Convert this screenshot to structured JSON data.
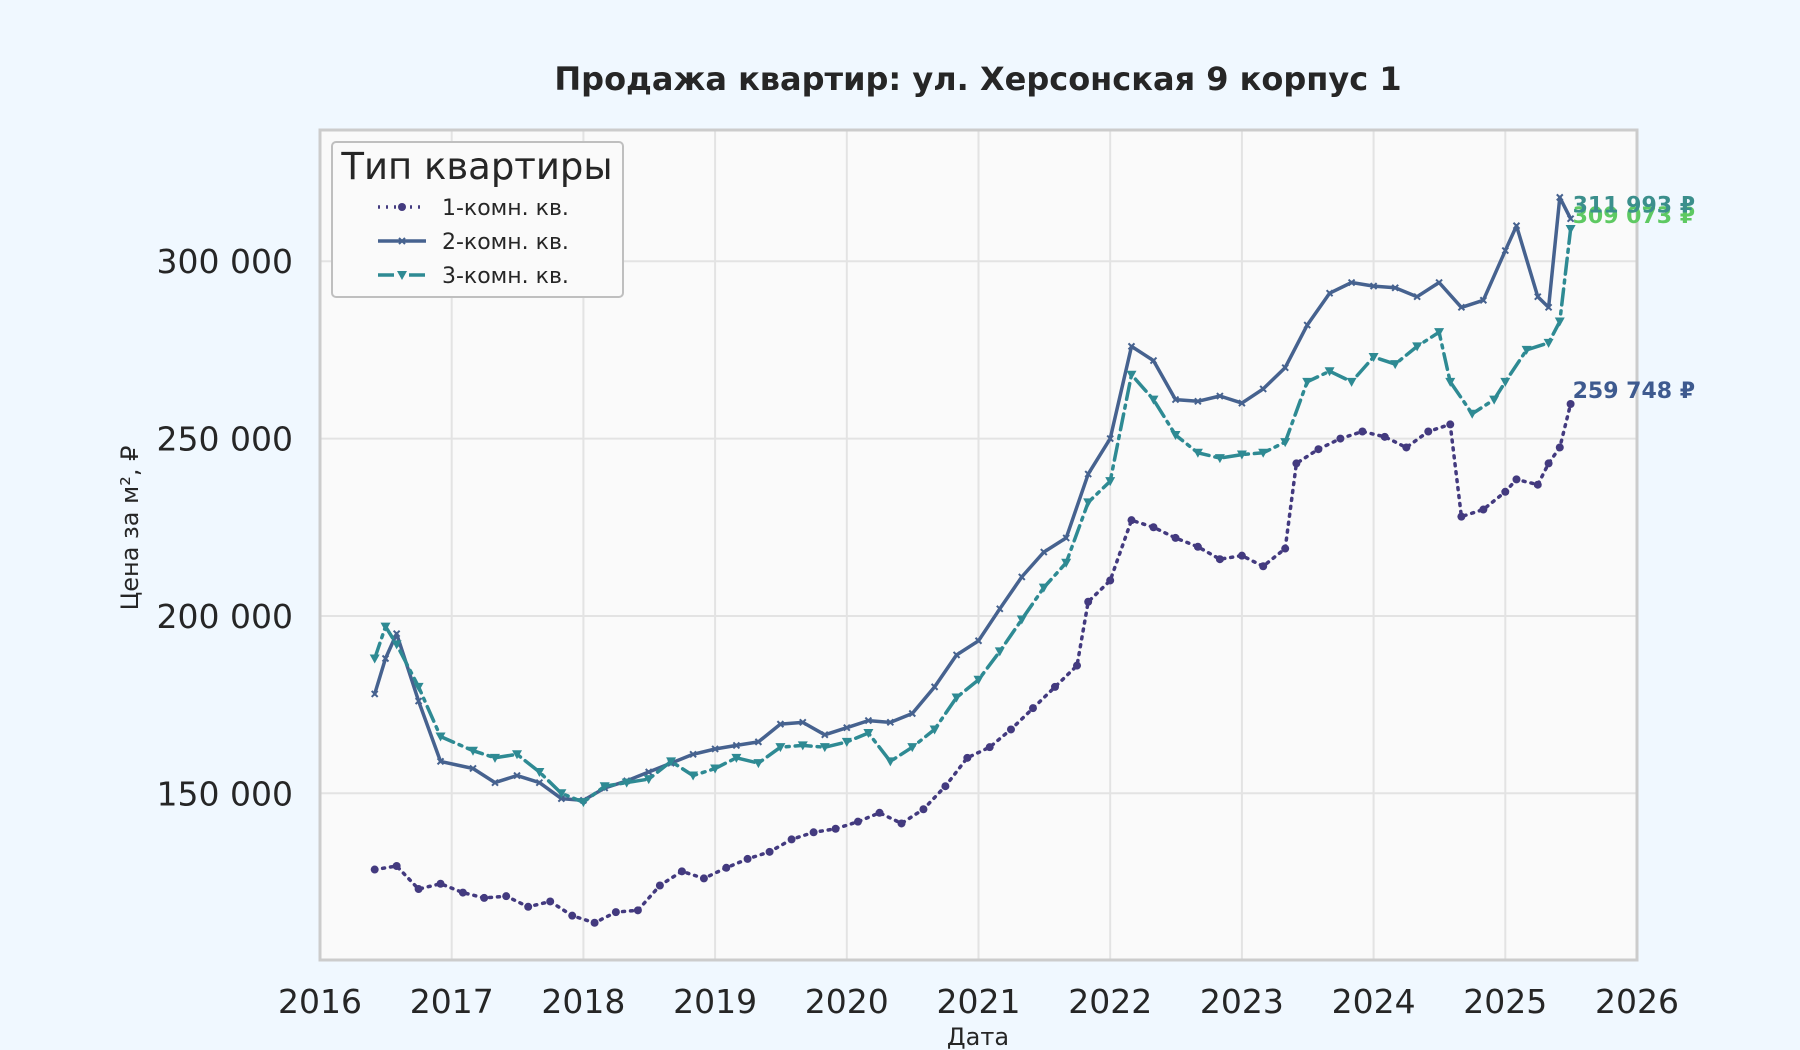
{
  "chart_data": {
    "type": "line",
    "title": "Продажа квартир: ул. Херсонская 9 корпус 1",
    "xlabel": "Дата",
    "ylabel": "Цена за м², ₽",
    "xlim": [
      "2016-01-01",
      "2026-01-01"
    ],
    "ylim": [
      103000,
      337000
    ],
    "x_ticks": [
      "2016",
      "2017",
      "2018",
      "2019",
      "2020",
      "2021",
      "2022",
      "2023",
      "2024",
      "2025",
      "2026"
    ],
    "y_ticks": [
      150000,
      200000,
      250000,
      300000
    ],
    "y_tick_labels": [
      "150 000",
      "200 000",
      "250 000",
      "300 000"
    ],
    "grid": true,
    "legend": {
      "title": "Тип квартиры",
      "position": "top-left"
    },
    "colors": {
      "background": "#f0f8ff",
      "plot_background": "#fafafa",
      "grid": "#e3e3e3",
      "frame": "#cccccc"
    },
    "series": [
      {
        "name": "1-комн. кв.",
        "color": "#433a7f",
        "style": "dotted",
        "marker": "circle",
        "points": [
          [
            "2016-06-01",
            128500
          ],
          [
            "2016-08-01",
            129500
          ],
          [
            "2016-10-01",
            123000
          ],
          [
            "2016-12-01",
            124500
          ],
          [
            "2017-02-01",
            122000
          ],
          [
            "2017-04-01",
            120500
          ],
          [
            "2017-06-01",
            121000
          ],
          [
            "2017-08-01",
            118000
          ],
          [
            "2017-10-01",
            119500
          ],
          [
            "2017-12-01",
            115500
          ],
          [
            "2018-02-01",
            113500
          ],
          [
            "2018-04-01",
            116500
          ],
          [
            "2018-06-01",
            117000
          ],
          [
            "2018-08-01",
            124000
          ],
          [
            "2018-10-01",
            128000
          ],
          [
            "2018-12-01",
            126000
          ],
          [
            "2019-02-01",
            129000
          ],
          [
            "2019-04-01",
            131500
          ],
          [
            "2019-06-01",
            133500
          ],
          [
            "2019-08-01",
            137000
          ],
          [
            "2019-10-01",
            139000
          ],
          [
            "2019-12-01",
            140000
          ],
          [
            "2020-02-01",
            142000
          ],
          [
            "2020-04-01",
            144500
          ],
          [
            "2020-06-01",
            141500
          ],
          [
            "2020-08-01",
            145500
          ],
          [
            "2020-10-01",
            152000
          ],
          [
            "2020-12-01",
            160000
          ],
          [
            "2021-02-01",
            163000
          ],
          [
            "2021-04-01",
            168000
          ],
          [
            "2021-06-01",
            174000
          ],
          [
            "2021-08-01",
            180000
          ],
          [
            "2021-10-01",
            186000
          ],
          [
            "2021-11-01",
            204000
          ],
          [
            "2022-01-01",
            210000
          ],
          [
            "2022-03-01",
            227000
          ],
          [
            "2022-05-01",
            225000
          ],
          [
            "2022-07-01",
            222000
          ],
          [
            "2022-09-01",
            219500
          ],
          [
            "2022-11-01",
            216000
          ],
          [
            "2023-01-01",
            217000
          ],
          [
            "2023-03-01",
            214000
          ],
          [
            "2023-05-01",
            219000
          ],
          [
            "2023-06-01",
            243000
          ],
          [
            "2023-08-01",
            247000
          ],
          [
            "2023-10-01",
            250000
          ],
          [
            "2023-12-01",
            252000
          ],
          [
            "2024-02-01",
            250500
          ],
          [
            "2024-04-01",
            247500
          ],
          [
            "2024-06-01",
            252000
          ],
          [
            "2024-08-01",
            254000
          ],
          [
            "2024-09-01",
            228000
          ],
          [
            "2024-11-01",
            230000
          ],
          [
            "2025-01-01",
            235000
          ],
          [
            "2025-02-01",
            238500
          ],
          [
            "2025-04-01",
            237000
          ],
          [
            "2025-05-01",
            243000
          ],
          [
            "2025-06-01",
            247500
          ],
          [
            "2025-07-01",
            259748
          ]
        ]
      },
      {
        "name": "2-комн. кв.",
        "color": "#46628f",
        "style": "solid",
        "marker": "small-x",
        "points": [
          [
            "2016-06-01",
            178000
          ],
          [
            "2016-07-01",
            188000
          ],
          [
            "2016-08-01",
            195000
          ],
          [
            "2016-10-01",
            176000
          ],
          [
            "2016-12-01",
            159000
          ],
          [
            "2017-03-01",
            157000
          ],
          [
            "2017-05-01",
            153000
          ],
          [
            "2017-07-01",
            155000
          ],
          [
            "2017-09-01",
            153000
          ],
          [
            "2017-11-01",
            148500
          ],
          [
            "2018-01-01",
            148000
          ],
          [
            "2018-03-01",
            151500
          ],
          [
            "2018-05-01",
            153500
          ],
          [
            "2018-07-01",
            156000
          ],
          [
            "2018-09-01",
            158500
          ],
          [
            "2018-11-01",
            161000
          ],
          [
            "2019-01-01",
            162500
          ],
          [
            "2019-03-01",
            163500
          ],
          [
            "2019-05-01",
            164500
          ],
          [
            "2019-07-01",
            169500
          ],
          [
            "2019-09-01",
            170000
          ],
          [
            "2019-11-01",
            166500
          ],
          [
            "2020-01-01",
            168500
          ],
          [
            "2020-03-01",
            170500
          ],
          [
            "2020-05-01",
            170000
          ],
          [
            "2020-07-01",
            172500
          ],
          [
            "2020-09-01",
            180000
          ],
          [
            "2020-11-01",
            189000
          ],
          [
            "2021-01-01",
            193000
          ],
          [
            "2021-03-01",
            202000
          ],
          [
            "2021-05-01",
            211000
          ],
          [
            "2021-07-01",
            218000
          ],
          [
            "2021-09-01",
            222000
          ],
          [
            "2021-11-01",
            240000
          ],
          [
            "2022-01-01",
            250000
          ],
          [
            "2022-03-01",
            276000
          ],
          [
            "2022-05-01",
            272000
          ],
          [
            "2022-07-01",
            261000
          ],
          [
            "2022-09-01",
            260500
          ],
          [
            "2022-11-01",
            262000
          ],
          [
            "2023-01-01",
            260000
          ],
          [
            "2023-03-01",
            264000
          ],
          [
            "2023-05-01",
            270000
          ],
          [
            "2023-07-01",
            282000
          ],
          [
            "2023-09-01",
            291000
          ],
          [
            "2023-11-01",
            294000
          ],
          [
            "2024-01-01",
            293000
          ],
          [
            "2024-03-01",
            292500
          ],
          [
            "2024-05-01",
            290000
          ],
          [
            "2024-07-01",
            294000
          ],
          [
            "2024-09-01",
            287000
          ],
          [
            "2024-11-01",
            289000
          ],
          [
            "2025-01-01",
            303000
          ],
          [
            "2025-02-01",
            310000
          ],
          [
            "2025-04-01",
            290000
          ],
          [
            "2025-05-01",
            287000
          ],
          [
            "2025-06-01",
            318000
          ],
          [
            "2025-07-01",
            311993
          ]
        ]
      },
      {
        "name": "3-комн. кв.",
        "color": "#2e8a93",
        "style": "dashdot",
        "marker": "triangle-down",
        "points": [
          [
            "2016-06-01",
            188000
          ],
          [
            "2016-07-01",
            197000
          ],
          [
            "2016-08-01",
            192000
          ],
          [
            "2016-10-01",
            180000
          ],
          [
            "2016-12-01",
            166000
          ],
          [
            "2017-03-01",
            162000
          ],
          [
            "2017-05-01",
            160000
          ],
          [
            "2017-07-01",
            161000
          ],
          [
            "2017-09-01",
            156000
          ],
          [
            "2017-11-01",
            150000
          ],
          [
            "2018-01-01",
            147500
          ],
          [
            "2018-03-01",
            152000
          ],
          [
            "2018-05-01",
            153000
          ],
          [
            "2018-07-01",
            154000
          ],
          [
            "2018-09-01",
            159000
          ],
          [
            "2018-11-01",
            155000
          ],
          [
            "2019-01-01",
            157000
          ],
          [
            "2019-03-01",
            160000
          ],
          [
            "2019-05-01",
            158500
          ],
          [
            "2019-07-01",
            163000
          ],
          [
            "2019-09-01",
            163500
          ],
          [
            "2019-11-01",
            163000
          ],
          [
            "2020-01-01",
            164500
          ],
          [
            "2020-03-01",
            167000
          ],
          [
            "2020-05-01",
            159000
          ],
          [
            "2020-07-01",
            163000
          ],
          [
            "2020-09-01",
            168000
          ],
          [
            "2020-11-01",
            177000
          ],
          [
            "2021-01-01",
            182000
          ],
          [
            "2021-03-01",
            190000
          ],
          [
            "2021-05-01",
            199000
          ],
          [
            "2021-07-01",
            208000
          ],
          [
            "2021-09-01",
            215000
          ],
          [
            "2021-11-01",
            232000
          ],
          [
            "2022-01-01",
            238000
          ],
          [
            "2022-03-01",
            268000
          ],
          [
            "2022-05-01",
            261000
          ],
          [
            "2022-07-01",
            251000
          ],
          [
            "2022-09-01",
            246000
          ],
          [
            "2022-11-01",
            244500
          ],
          [
            "2023-01-01",
            245500
          ],
          [
            "2023-03-01",
            246000
          ],
          [
            "2023-05-01",
            249000
          ],
          [
            "2023-07-01",
            266000
          ],
          [
            "2023-09-01",
            269000
          ],
          [
            "2023-11-01",
            266000
          ],
          [
            "2024-01-01",
            273000
          ],
          [
            "2024-03-01",
            271000
          ],
          [
            "2024-05-01",
            276000
          ],
          [
            "2024-07-01",
            280000
          ],
          [
            "2024-08-01",
            266000
          ],
          [
            "2024-10-01",
            257000
          ],
          [
            "2024-12-01",
            261000
          ],
          [
            "2025-01-01",
            266000
          ],
          [
            "2025-03-01",
            275000
          ],
          [
            "2025-05-01",
            277000
          ],
          [
            "2025-06-01",
            283000
          ],
          [
            "2025-07-01",
            309073
          ]
        ]
      }
    ],
    "annotations": [
      {
        "text": "309 073 ₽",
        "series": "3-комн. кв.",
        "color": "#5ec962"
      },
      {
        "text": "311 993 ₽",
        "series": "2-комн. кв.",
        "color": "#3b8f8c"
      },
      {
        "text": "259 748 ₽",
        "series": "1-комн. кв.",
        "color": "#3e5a8f"
      }
    ]
  }
}
